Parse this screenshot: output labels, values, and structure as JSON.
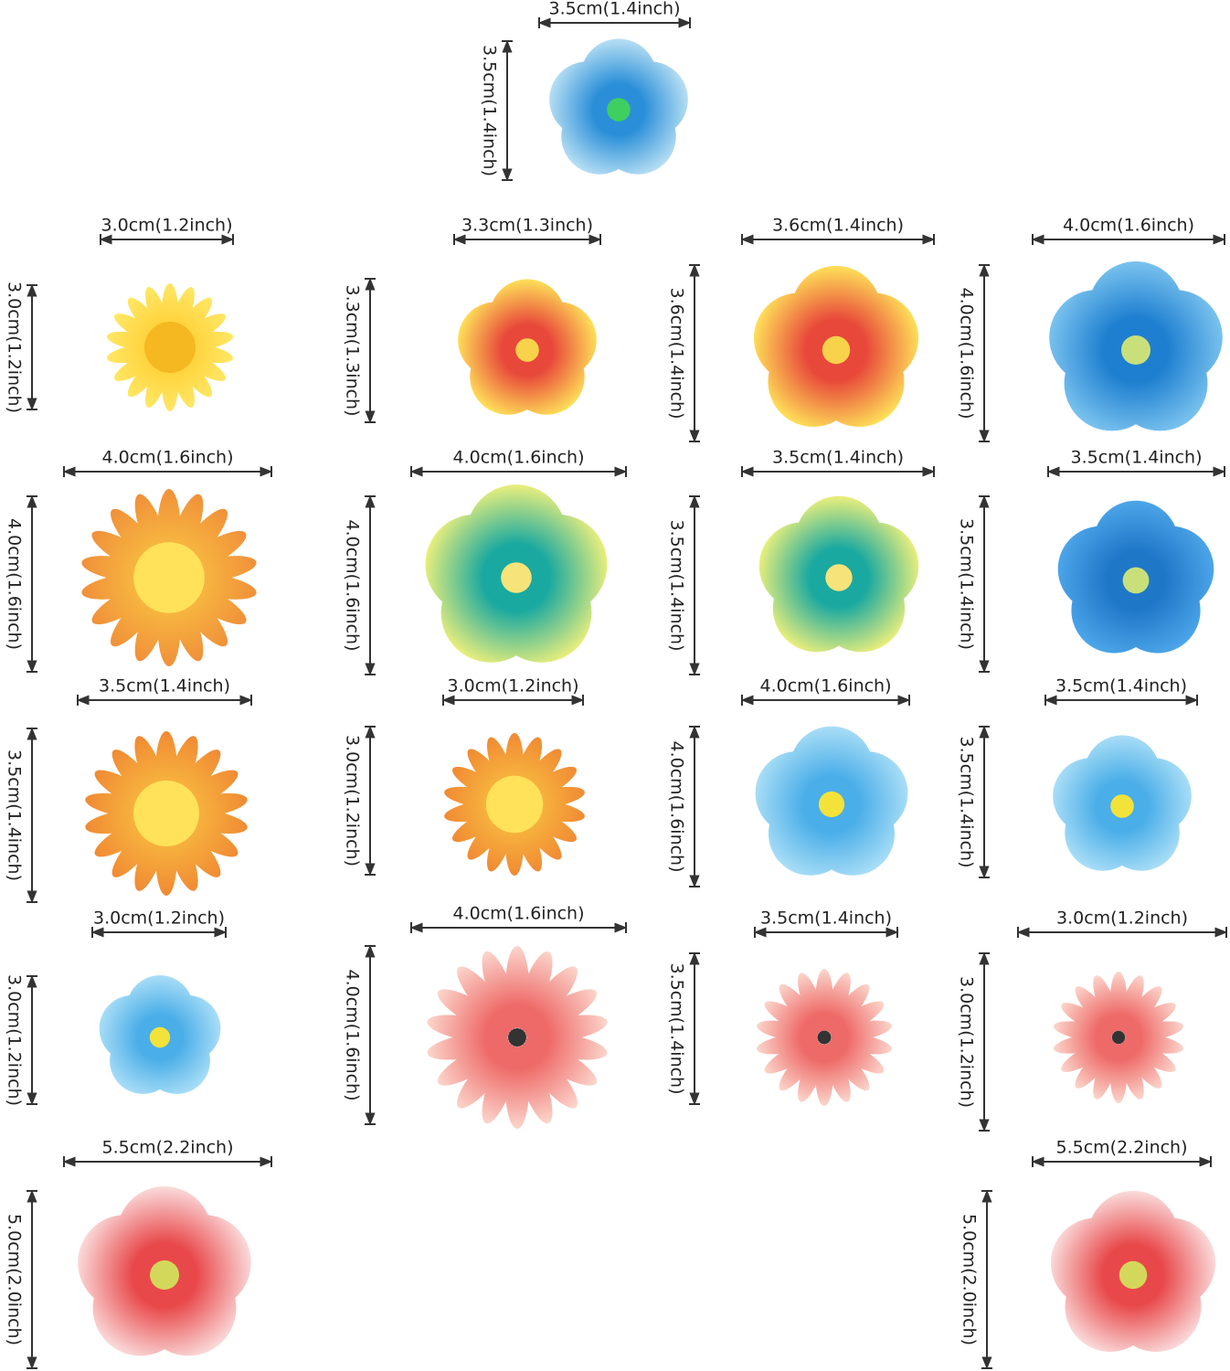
{
  "items": [
    {
      "width_label": "3.5cm(1.4inch)",
      "height_label": "3.5cm(1.4inch)"
    },
    {
      "width_label": "3.0cm(1.2inch)",
      "height_label": "3.0cm(1.2inch)"
    },
    {
      "width_label": "3.3cm(1.3inch)",
      "height_label": "3.3cm(1.3inch)"
    },
    {
      "width_label": "3.6cm(1.4inch)",
      "height_label": "3.6cm(1.4inch)"
    },
    {
      "width_label": "4.0cm(1.6inch)",
      "height_label": "4.0cm(1.6inch)"
    },
    {
      "width_label": "4.0cm(1.6inch)",
      "height_label": "4.0cm(1.6inch)"
    },
    {
      "width_label": "4.0cm(1.6inch)",
      "height_label": "4.0cm(1.6inch)"
    },
    {
      "width_label": "3.5cm(1.4inch)",
      "height_label": "3.5cm(1.4inch)"
    },
    {
      "width_label": "3.5cm(1.4inch)",
      "height_label": "3.5cm(1.4inch)"
    },
    {
      "width_label": "3.5cm(1.4inch)",
      "height_label": "3.5cm(1.4inch)"
    },
    {
      "width_label": "3.0cm(1.2inch)",
      "height_label": "3.0cm(1.2inch)"
    },
    {
      "width_label": "4.0cm(1.6inch)",
      "height_label": "4.0cm(1.6inch)"
    },
    {
      "width_label": "3.5cm(1.4inch)",
      "height_label": "3.5cm(1.4inch)"
    },
    {
      "width_label": "3.0cm(1.2inch)",
      "height_label": "3.0cm(1.2inch)"
    },
    {
      "width_label": "4.0cm(1.6inch)",
      "height_label": "4.0cm(1.6inch)"
    },
    {
      "width_label": "3.5cm(1.4inch)",
      "height_label": "3.5cm(1.4inch)"
    },
    {
      "width_label": "3.0cm(1.2inch)",
      "height_label": "3.0cm(1.2inch)"
    },
    {
      "width_label": "5.5cm(2.2inch)",
      "height_label": "5.0cm(2.0inch)"
    },
    {
      "width_label": "5.5cm(2.2inch)",
      "height_label": "5.0cm(2.0inch)"
    }
  ]
}
